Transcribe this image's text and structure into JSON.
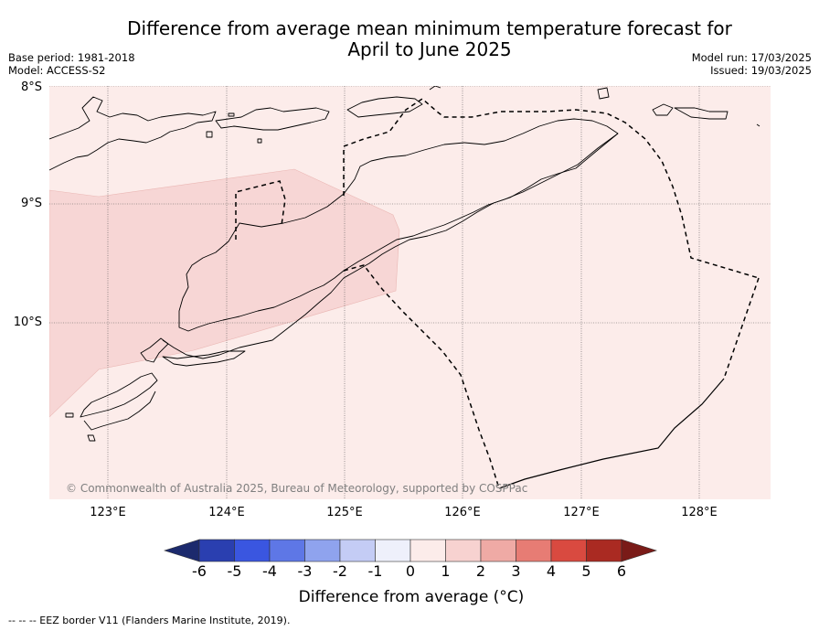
{
  "title_line1": "Difference from average mean minimum temperature forecast for",
  "title_line2": "April to June 2025",
  "base_period": "Base period: 1981-2018",
  "model": "Model: ACCESS-S2",
  "model_run": "Model run: 17/03/2025",
  "issued": "Issued: 19/03/2025",
  "lat_labels": [
    "8°S",
    "9°S",
    "10°S"
  ],
  "lon_labels": [
    "123°E",
    "124°E",
    "125°E",
    "126°E",
    "127°E",
    "128°E"
  ],
  "copyright": "© Commonwealth of Australia 2025, Bureau of Meteorology, supported by COSPPac",
  "legend": {
    "ticks": [
      "-6",
      "-5",
      "-4",
      "-3",
      "-2",
      "-1",
      "0",
      "1",
      "2",
      "3",
      "4",
      "5",
      "6"
    ],
    "colors": [
      "#1c2a6d",
      "#2a3fb0",
      "#3a56e0",
      "#5e77e6",
      "#8fa3ee",
      "#c4ccf5",
      "#eef0fb",
      "#fcecea",
      "#f7d2d0",
      "#efaaa5",
      "#e77c74",
      "#d94a40",
      "#aa2a22",
      "#7a1b18"
    ],
    "label": "Difference from average (°C)"
  },
  "map_fill": {
    "base_color": "#fcecea",
    "overlay_color": "#f7d6d5"
  },
  "footnote": "-- -- -- EEZ border V11 (Flanders Marine Institute, 2019)."
}
